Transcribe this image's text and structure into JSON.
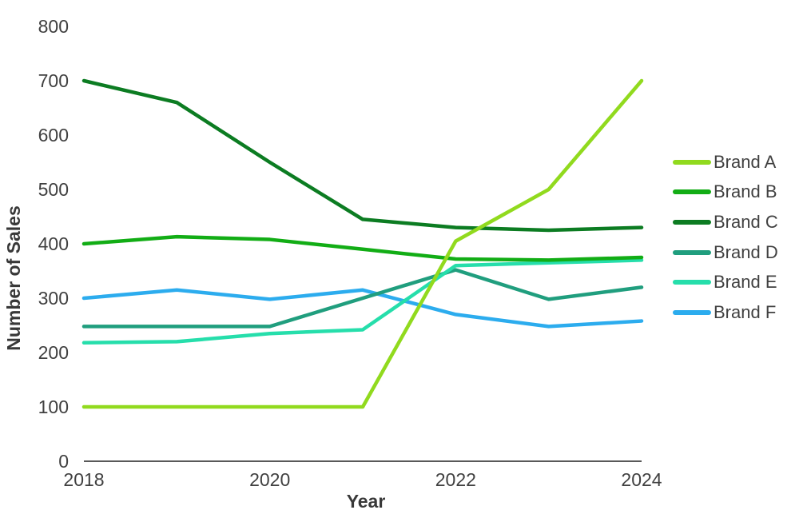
{
  "chart_data": {
    "type": "line",
    "title": "",
    "xlabel": "Year",
    "ylabel": "Number of Sales",
    "x": [
      2018,
      2019,
      2020,
      2021,
      2022,
      2023,
      2024
    ],
    "xticks": [
      2018,
      2020,
      2022,
      2024
    ],
    "yticks": [
      0,
      100,
      200,
      300,
      400,
      500,
      600,
      700,
      800
    ],
    "xlim": [
      2018,
      2024
    ],
    "ylim": [
      0,
      800
    ],
    "grid": false,
    "legend_position": "right",
    "series": [
      {
        "name": "Brand A",
        "color": "#91da1e",
        "values": [
          100,
          100,
          100,
          100,
          405,
          500,
          700
        ]
      },
      {
        "name": "Brand B",
        "color": "#12ad15",
        "values": [
          400,
          413,
          408,
          390,
          372,
          370,
          375
        ]
      },
      {
        "name": "Brand C",
        "color": "#0c7c22",
        "values": [
          700,
          660,
          550,
          445,
          430,
          425,
          430
        ]
      },
      {
        "name": "Brand D",
        "color": "#209e7e",
        "values": [
          248,
          248,
          248,
          300,
          352,
          298,
          320
        ]
      },
      {
        "name": "Brand E",
        "color": "#26deab",
        "values": [
          218,
          220,
          235,
          242,
          360,
          365,
          370
        ]
      },
      {
        "name": "Brand F",
        "color": "#2cacee",
        "values": [
          300,
          315,
          298,
          315,
          270,
          248,
          258
        ]
      }
    ]
  },
  "colors": {
    "text": "#404040",
    "axis_line": "#595959",
    "background": "#ffffff"
  }
}
